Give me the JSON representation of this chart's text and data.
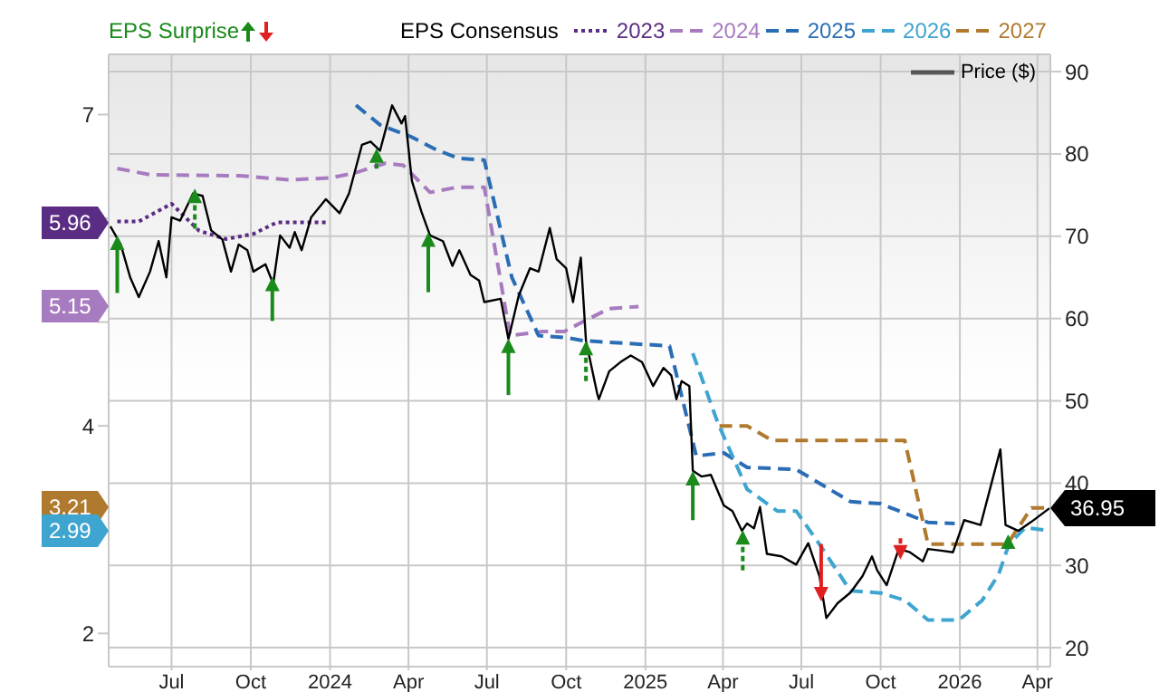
{
  "chart_data": {
    "type": "line",
    "legend": "top",
    "legend_title": "EPS Consensus",
    "grid": true,
    "xlim": [
      "2023-04-19",
      "2026-04-16"
    ],
    "xticks": [
      {
        "value": "2023-07-01",
        "label": "Jul"
      },
      {
        "value": "2023-10-01",
        "label": "Oct"
      },
      {
        "value": "2024-01-01",
        "label": "2024"
      },
      {
        "value": "2024-04-01",
        "label": "Apr"
      },
      {
        "value": "2024-07-01",
        "label": "Jul"
      },
      {
        "value": "2024-10-01",
        "label": "Oct"
      },
      {
        "value": "2025-01-01",
        "label": "2025"
      },
      {
        "value": "2025-04-01",
        "label": "Apr"
      },
      {
        "value": "2025-07-01",
        "label": "Jul"
      },
      {
        "value": "2025-10-01",
        "label": "Oct"
      },
      {
        "value": "2026-01-01",
        "label": "2026"
      },
      {
        "value": "2026-04-01",
        "label": "Apr"
      }
    ],
    "ylim": [
      1.68,
      7.58
    ],
    "yticks": [
      2,
      {
        "value": 3,
        "label": null
      },
      4,
      {
        "value": 5,
        "label": null
      },
      {
        "value": 6,
        "label": null
      },
      7
    ],
    "annotations": [
      "5.96",
      "5.15",
      "3.21",
      "2.99"
    ],
    "y2lim": [
      17.7,
      92.1
    ],
    "y2ticks": [
      20,
      30,
      40,
      50,
      60,
      70,
      80,
      90
    ],
    "series": [
      {
        "name": "2023",
        "type": "line",
        "line_style": "dotted",
        "color": "#5b2c83",
        "x": [
          "2023-04-29",
          "2023-05-24",
          "2023-07-01",
          "2023-08-02",
          "2023-09-02",
          "2023-10-04",
          "2023-10-31",
          "2023-12-31"
        ],
        "values": [
          5.97,
          5.97,
          6.14,
          5.88,
          5.8,
          5.85,
          5.96,
          5.96
        ]
      },
      {
        "name": "2024",
        "type": "line",
        "line_style": "dashed",
        "color": "#a77bbf",
        "x": [
          "2023-04-29",
          "2023-06-06",
          "2023-09-19",
          "2023-11-15",
          "2024-01-02",
          "2024-01-31",
          "2024-03-05",
          "2024-03-26",
          "2024-04-26",
          "2024-05-28",
          "2024-06-28",
          "2024-07-28",
          "2024-09-04",
          "2024-09-29",
          "2024-10-22",
          "2024-11-20",
          "2024-12-24"
        ],
        "values": [
          6.48,
          6.42,
          6.41,
          6.37,
          6.39,
          6.44,
          6.53,
          6.51,
          6.25,
          6.3,
          6.3,
          4.87,
          4.91,
          4.91,
          5.01,
          5.13,
          5.15
        ]
      },
      {
        "name": "2025",
        "type": "line",
        "line_style": "dashed",
        "color": "#2a6db5",
        "x": [
          "2024-01-31",
          "2024-02-28",
          "2024-04-03",
          "2024-05-01",
          "2024-05-28",
          "2024-06-28",
          "2024-07-30",
          "2024-08-30",
          "2024-10-01",
          "2024-10-22",
          "2025-01-29",
          "2025-03-01",
          "2025-04-02",
          "2025-04-29",
          "2025-06-25",
          "2025-08-27",
          "2025-10-01",
          "2025-11-25",
          "2025-12-26"
        ],
        "values": [
          7.09,
          6.9,
          6.79,
          6.67,
          6.58,
          6.56,
          5.43,
          4.87,
          4.85,
          4.82,
          4.77,
          3.71,
          3.74,
          3.6,
          3.58,
          3.27,
          3.25,
          3.07,
          3.06
        ]
      },
      {
        "name": "2026",
        "type": "line",
        "line_style": "dashed",
        "color": "#3ea4d0",
        "x": [
          "2025-02-25",
          "2025-03-26",
          "2025-04-29",
          "2025-06-03",
          "2025-06-25",
          "2025-07-22",
          "2025-08-27",
          "2025-10-01",
          "2025-10-29",
          "2025-11-25",
          "2025-12-31",
          "2026-01-27",
          "2026-02-15",
          "2026-02-27",
          "2026-03-18",
          "2026-04-15"
        ],
        "values": [
          4.7,
          4.03,
          3.39,
          3.18,
          3.18,
          2.86,
          2.41,
          2.39,
          2.32,
          2.13,
          2.13,
          2.32,
          2.57,
          2.86,
          3.02,
          2.99
        ]
      },
      {
        "name": "2027",
        "type": "line",
        "line_style": "dashed",
        "color": "#b07a2e",
        "x": [
          "2025-03-28",
          "2025-04-29",
          "2025-05-28",
          "2025-10-29",
          "2025-11-25",
          "2026-02-25",
          "2026-03-25",
          "2026-04-15"
        ],
        "values": [
          4.0,
          4.0,
          3.86,
          3.86,
          2.86,
          2.86,
          3.21,
          3.21
        ]
      },
      {
        "name": "Price ($)",
        "type": "line",
        "axis": "y2",
        "line_style": "solid",
        "color": "#000000",
        "x": [
          "2023-04-21",
          "2023-05-03",
          "2023-05-14",
          "2023-05-24",
          "2023-06-06",
          "2023-06-16",
          "2023-06-25",
          "2023-07-01",
          "2023-07-11",
          "2023-07-26",
          "2023-08-06",
          "2023-08-16",
          "2023-08-29",
          "2023-09-08",
          "2023-09-17",
          "2023-09-27",
          "2023-10-04",
          "2023-10-18",
          "2023-10-27",
          "2023-11-04",
          "2023-11-15",
          "2023-11-21",
          "2023-11-29",
          "2023-12-10",
          "2023-12-27",
          "2024-01-12",
          "2024-01-23",
          "2024-02-07",
          "2024-02-17",
          "2024-02-28",
          "2024-03-13",
          "2024-03-24",
          "2024-03-28",
          "2024-04-05",
          "2024-04-16",
          "2024-04-26",
          "2024-05-11",
          "2024-05-22",
          "2024-05-30",
          "2024-06-12",
          "2024-06-22",
          "2024-06-28",
          "2024-07-17",
          "2024-07-26",
          "2024-08-07",
          "2024-08-20",
          "2024-08-30",
          "2024-09-12",
          "2024-09-20",
          "2024-10-01",
          "2024-10-09",
          "2024-10-18",
          "2024-10-24",
          "2024-11-06",
          "2024-11-08",
          "2024-11-20",
          "2024-12-03",
          "2024-12-15",
          "2024-12-28",
          "2025-01-10",
          "2025-01-22",
          "2025-01-31",
          "2025-02-06",
          "2025-02-12",
          "2025-02-21",
          "2025-02-25",
          "2025-03-07",
          "2025-03-18",
          "2025-04-02",
          "2025-04-12",
          "2025-04-23",
          "2025-04-29",
          "2025-05-07",
          "2025-05-14",
          "2025-05-22",
          "2025-06-08",
          "2025-06-25",
          "2025-07-09",
          "2025-07-22",
          "2025-07-30",
          "2025-08-12",
          "2025-08-27",
          "2025-09-10",
          "2025-09-21",
          "2025-09-27",
          "2025-10-08",
          "2025-10-22",
          "2025-11-04",
          "2025-11-19",
          "2025-11-25",
          "2025-12-10",
          "2025-12-24",
          "2026-01-06",
          "2026-01-25",
          "2026-02-06",
          "2026-02-17",
          "2026-02-23",
          "2026-03-10",
          "2026-03-25",
          "2026-04-15"
        ],
        "values": [
          71.2,
          69.0,
          65.0,
          62.6,
          65.7,
          69.4,
          65.0,
          72.3,
          71.9,
          75.2,
          74.9,
          70.7,
          69.6,
          65.7,
          69.0,
          68.3,
          65.7,
          66.6,
          64.2,
          70.1,
          68.6,
          70.5,
          68.3,
          72.3,
          74.5,
          72.8,
          75.2,
          81.1,
          81.5,
          80.4,
          85.9,
          83.7,
          84.6,
          76.7,
          73.0,
          70.1,
          69.4,
          66.4,
          68.3,
          65.3,
          64.6,
          62.0,
          62.4,
          57.5,
          62.8,
          66.1,
          65.7,
          71.0,
          67.2,
          66.1,
          62.0,
          67.4,
          57.3,
          50.9,
          50.2,
          53.6,
          54.7,
          55.5,
          54.7,
          51.8,
          54.0,
          53.1,
          50.2,
          52.4,
          51.8,
          41.5,
          40.8,
          41.0,
          37.3,
          36.6,
          34.2,
          35.1,
          34.5,
          37.1,
          31.4,
          31.1,
          30.1,
          32.7,
          28.7,
          23.6,
          25.4,
          26.7,
          28.7,
          31.1,
          29.4,
          27.6,
          32.0,
          31.6,
          30.5,
          32.0,
          31.8,
          31.6,
          35.5,
          34.9,
          39.7,
          44.1,
          34.9,
          34.2,
          35.3,
          36.95
        ],
        "value_labels": [
          null,
          null,
          null,
          null,
          null,
          null,
          null,
          null,
          null,
          null,
          null,
          null,
          null,
          null,
          null,
          null,
          null,
          null,
          null,
          null,
          null,
          null,
          null,
          null,
          null,
          null,
          null,
          null,
          null,
          null,
          null,
          null,
          null,
          null,
          null,
          null,
          null,
          null,
          null,
          null,
          null,
          null,
          null,
          null,
          null,
          null,
          null,
          null,
          null,
          null,
          null,
          null,
          null,
          null,
          null,
          null,
          null,
          null,
          null,
          null,
          null,
          null,
          null,
          null,
          null,
          null,
          null,
          null,
          null,
          null,
          null,
          null,
          null,
          null,
          null,
          null,
          null,
          null,
          null,
          null,
          null,
          null,
          null,
          null,
          null,
          null,
          null,
          null,
          null,
          null,
          null,
          null,
          null,
          null,
          null,
          null,
          null,
          null,
          null,
          "36.95"
        ]
      },
      {
        "name": "EPS Surprise",
        "type": "scatter",
        "axis": "y2",
        "marker": "triangle",
        "color": "#1a8a1a",
        "x": [
          "2023-04-29",
          "2023-07-28",
          "2023-10-26",
          "2024-02-24",
          "2024-04-24",
          "2024-07-26",
          "2024-10-24",
          "2025-02-25",
          "2025-04-24",
          "2025-07-24",
          "2025-10-24",
          "2026-02-26"
        ],
        "values": [
          69.2,
          74.9,
          64.2,
          79.8,
          69.6,
          56.7,
          56.4,
          40.6,
          33.4,
          26.5,
          31.6,
          32.9
        ],
        "errors": [
          [
            63.1,
            69.2
          ],
          [
            70.9,
            74.9
          ],
          [
            59.7,
            64.2
          ],
          [
            78.2,
            79.8
          ],
          [
            63.2,
            69.6
          ],
          [
            50.7,
            56.7
          ],
          [
            52.4,
            56.4
          ],
          [
            35.5,
            40.6
          ],
          [
            29.4,
            33.4
          ],
          [
            26.5,
            32.6
          ],
          [
            31.6,
            33.3
          ],
          [
            32.2,
            32.9
          ]
        ],
        "colors": [
          "#1a8a1a",
          "#1a8a1a",
          "#1a8a1a",
          "#1a8a1a",
          "#1a8a1a",
          "#1a8a1a",
          "#1a8a1a",
          "#1a8a1a",
          "#1a8a1a",
          "#e02020",
          "#e02020",
          "#1a8a1a"
        ]
      }
    ]
  }
}
